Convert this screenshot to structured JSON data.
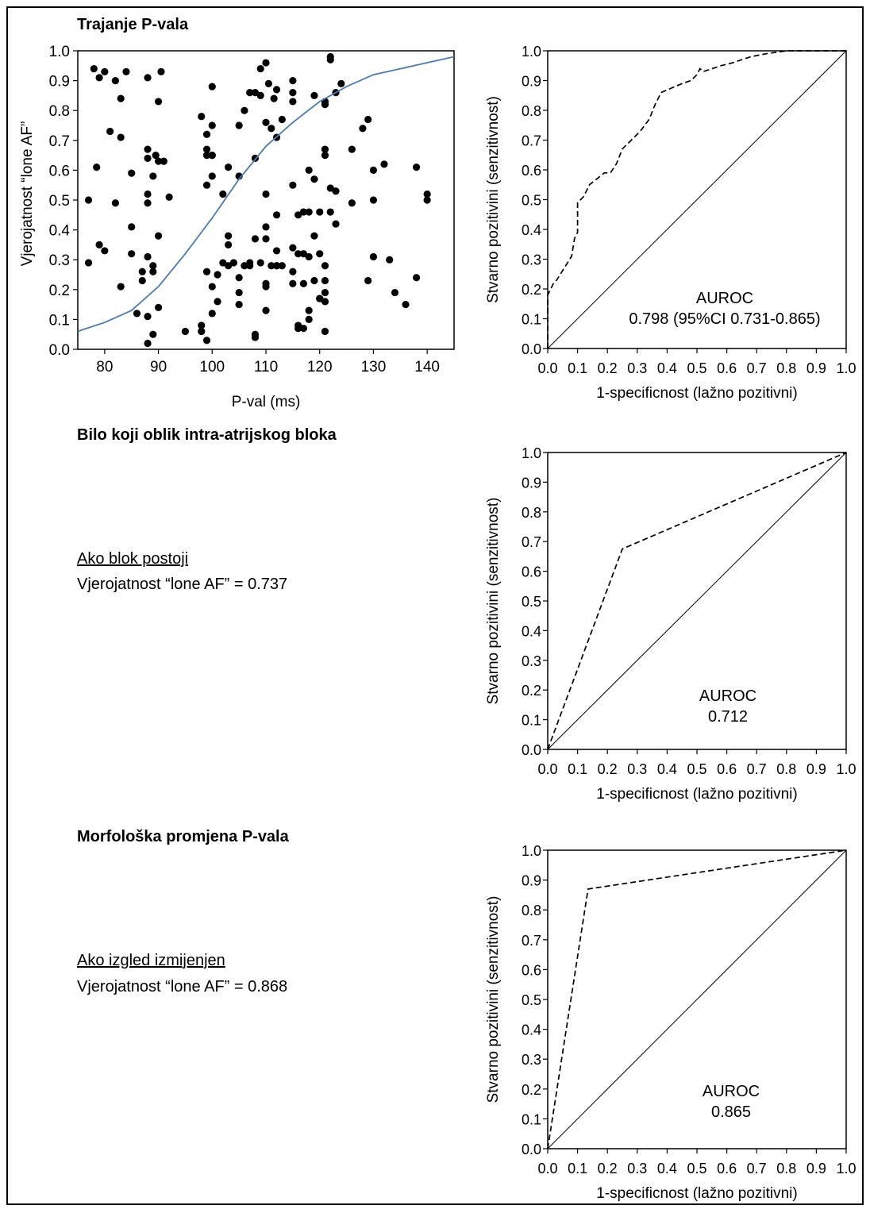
{
  "sections": {
    "s1_title": "Trajanje P-vala",
    "s2_title": "Bilo koji oblik intra-atrijskog bloka",
    "s3_title": "Morfološka promjena P-vala",
    "s2_note_head": "Ako blok postoji",
    "s2_note_text": "Vjerojatnost “lone AF” = 0.737",
    "s3_note_head": "Ako izgled izmijenjen",
    "s3_note_text": "Vjerojatnost “lone AF” = 0.868"
  },
  "colors": {
    "logistic_curve": "#4a7ab5",
    "points": "#000000",
    "roc_curve": "#000000"
  },
  "chart_data": [
    {
      "id": "scatter",
      "type": "scatter",
      "xlabel": "P-val (ms)",
      "ylabel": "Vjerojatnost “lone AF”",
      "xlim": [
        75,
        145
      ],
      "ylim": [
        0,
        1.0
      ],
      "xticks": [
        80,
        90,
        100,
        110,
        120,
        130,
        140
      ],
      "yticks": [
        0.0,
        0.1,
        0.2,
        0.3,
        0.4,
        0.5,
        0.6,
        0.7,
        0.8,
        0.9,
        1.0
      ],
      "ytick_labels": [
        "0.0",
        "0.1",
        "0.2",
        "0.3",
        "0.4",
        "0.5",
        "0.6",
        "0.7",
        "0.8",
        "0.9",
        "1.0"
      ],
      "points": [
        [
          77,
          0.5
        ],
        [
          77,
          0.29
        ],
        [
          78,
          0.94
        ],
        [
          78.5,
          0.61
        ],
        [
          79,
          0.91
        ],
        [
          79,
          0.35
        ],
        [
          80,
          0.93
        ],
        [
          80,
          0.33
        ],
        [
          81,
          0.73
        ],
        [
          82,
          0.9
        ],
        [
          82,
          0.49
        ],
        [
          83,
          0.84
        ],
        [
          83,
          0.71
        ],
        [
          84,
          0.93
        ],
        [
          83,
          0.21
        ],
        [
          85,
          0.59
        ],
        [
          85,
          0.41
        ],
        [
          85,
          0.32
        ],
        [
          86,
          0.12
        ],
        [
          87,
          0.26
        ],
        [
          87,
          0.23
        ],
        [
          88,
          0.91
        ],
        [
          88,
          0.67
        ],
        [
          88,
          0.64
        ],
        [
          88,
          0.52
        ],
        [
          88,
          0.49
        ],
        [
          88,
          0.31
        ],
        [
          88,
          0.11
        ],
        [
          88,
          0.02
        ],
        [
          89,
          0.58
        ],
        [
          89,
          0.28
        ],
        [
          89,
          0.26
        ],
        [
          89,
          0.05
        ],
        [
          89.5,
          0.65
        ],
        [
          90,
          0.83
        ],
        [
          90,
          0.63
        ],
        [
          90,
          0.38
        ],
        [
          90,
          0.14
        ],
        [
          90.5,
          0.93
        ],
        [
          91,
          0.63
        ],
        [
          92,
          0.51
        ],
        [
          95,
          0.06
        ],
        [
          98,
          0.78
        ],
        [
          98,
          0.08
        ],
        [
          98,
          0.06
        ],
        [
          99,
          0.72
        ],
        [
          99,
          0.67
        ],
        [
          99,
          0.65
        ],
        [
          99,
          0.55
        ],
        [
          99,
          0.26
        ],
        [
          99,
          0.03
        ],
        [
          100,
          0.88
        ],
        [
          100,
          0.75
        ],
        [
          100,
          0.65
        ],
        [
          100,
          0.65
        ],
        [
          100,
          0.58
        ],
        [
          100,
          0.21
        ],
        [
          100,
          0.12
        ],
        [
          101,
          0.25
        ],
        [
          101,
          0.16
        ],
        [
          102,
          0.52
        ],
        [
          102,
          0.29
        ],
        [
          103,
          0.61
        ],
        [
          103,
          0.38
        ],
        [
          103,
          0.35
        ],
        [
          103,
          0.28
        ],
        [
          104,
          0.29
        ],
        [
          105,
          0.75
        ],
        [
          105,
          0.58
        ],
        [
          105,
          0.24
        ],
        [
          105,
          0.19
        ],
        [
          105,
          0.15
        ],
        [
          106,
          0.8
        ],
        [
          106,
          0.28
        ],
        [
          107,
          0.86
        ],
        [
          107,
          0.28
        ],
        [
          107,
          0.29
        ],
        [
          108,
          0.86
        ],
        [
          108,
          0.64
        ],
        [
          108,
          0.37
        ],
        [
          108,
          0.05
        ],
        [
          108,
          0.04
        ],
        [
          109,
          0.94
        ],
        [
          109,
          0.85
        ],
        [
          109,
          0.29
        ],
        [
          110,
          0.96
        ],
        [
          110,
          0.76
        ],
        [
          110,
          0.52
        ],
        [
          110,
          0.41
        ],
        [
          110,
          0.37
        ],
        [
          110,
          0.22
        ],
        [
          110,
          0.21
        ],
        [
          110,
          0.13
        ],
        [
          110.5,
          0.89
        ],
        [
          111,
          0.74
        ],
        [
          111,
          0.28
        ],
        [
          111.5,
          0.84
        ],
        [
          112,
          0.87
        ],
        [
          112,
          0.71
        ],
        [
          112,
          0.45
        ],
        [
          112,
          0.33
        ],
        [
          112,
          0.28
        ],
        [
          112,
          0.28
        ],
        [
          113,
          0.77
        ],
        [
          113,
          0.28
        ],
        [
          115,
          0.9
        ],
        [
          115,
          0.86
        ],
        [
          115,
          0.83
        ],
        [
          115,
          0.55
        ],
        [
          115,
          0.34
        ],
        [
          115,
          0.26
        ],
        [
          115,
          0.22
        ],
        [
          116,
          0.32
        ],
        [
          116,
          0.45
        ],
        [
          116,
          0.08
        ],
        [
          116,
          0.07
        ],
        [
          117,
          0.46
        ],
        [
          117,
          0.32
        ],
        [
          117,
          0.22
        ],
        [
          117,
          0.07
        ],
        [
          118,
          0.6
        ],
        [
          118,
          0.46
        ],
        [
          118,
          0.31
        ],
        [
          118,
          0.13
        ],
        [
          118,
          0.1
        ],
        [
          119,
          0.85
        ],
        [
          119,
          0.57
        ],
        [
          119,
          0.38
        ],
        [
          119,
          0.23
        ],
        [
          120,
          0.46
        ],
        [
          120,
          0.32
        ],
        [
          120,
          0.17
        ],
        [
          120,
          0.17
        ],
        [
          121,
          0.83
        ],
        [
          121,
          0.82
        ],
        [
          121,
          0.67
        ],
        [
          121,
          0.65
        ],
        [
          121,
          0.28
        ],
        [
          121,
          0.23
        ],
        [
          121,
          0.19
        ],
        [
          121,
          0.16
        ],
        [
          121,
          0.06
        ],
        [
          122,
          0.98
        ],
        [
          122,
          0.97
        ],
        [
          122,
          0.54
        ],
        [
          122,
          0.46
        ],
        [
          123,
          0.86
        ],
        [
          123,
          0.53
        ],
        [
          123,
          0.42
        ],
        [
          124,
          0.89
        ],
        [
          126,
          0.67
        ],
        [
          126,
          0.49
        ],
        [
          128,
          0.74
        ],
        [
          129,
          0.23
        ],
        [
          129,
          0.77
        ],
        [
          130,
          0.6
        ],
        [
          130,
          0.5
        ],
        [
          130,
          0.31
        ],
        [
          132,
          0.62
        ],
        [
          133,
          0.3
        ],
        [
          134,
          0.19
        ],
        [
          136,
          0.15
        ],
        [
          138,
          0.61
        ],
        [
          138,
          0.24
        ],
        [
          140,
          0.52
        ],
        [
          140,
          0.5
        ]
      ],
      "curve": [
        [
          75,
          0.06
        ],
        [
          80,
          0.09
        ],
        [
          85,
          0.13
        ],
        [
          90,
          0.21
        ],
        [
          95,
          0.32
        ],
        [
          100,
          0.44
        ],
        [
          105,
          0.57
        ],
        [
          110,
          0.68
        ],
        [
          115,
          0.76
        ],
        [
          120,
          0.83
        ],
        [
          125,
          0.88
        ],
        [
          130,
          0.92
        ],
        [
          135,
          0.94
        ],
        [
          140,
          0.96
        ],
        [
          145,
          0.98
        ]
      ]
    },
    {
      "id": "roc1",
      "type": "line",
      "xlabel": "1-specificnost (lažno pozitivni)",
      "ylabel": "Stvarno pozitivini (senzitivnost)",
      "xlim": [
        0,
        1
      ],
      "ylim": [
        0,
        1
      ],
      "ticks": [
        "0.0",
        "0.1",
        "0.2",
        "0.3",
        "0.4",
        "0.5",
        "0.6",
        "0.7",
        "0.8",
        "0.9",
        "1.0"
      ],
      "annotation_title": "AUROC",
      "annotation_value": "0.798 (95%CI 0.731-0.865)",
      "series": [
        {
          "values": [
            [
              0.0,
              0.0
            ],
            [
              0.0,
              0.18
            ],
            [
              0.02,
              0.22
            ],
            [
              0.03,
              0.23
            ],
            [
              0.08,
              0.31
            ],
            [
              0.09,
              0.37
            ],
            [
              0.1,
              0.39
            ],
            [
              0.1,
              0.49
            ],
            [
              0.12,
              0.51
            ],
            [
              0.14,
              0.55
            ],
            [
              0.19,
              0.59
            ],
            [
              0.21,
              0.59
            ],
            [
              0.23,
              0.62
            ],
            [
              0.25,
              0.67
            ],
            [
              0.28,
              0.7
            ],
            [
              0.31,
              0.73
            ],
            [
              0.34,
              0.77
            ],
            [
              0.36,
              0.82
            ],
            [
              0.38,
              0.86
            ],
            [
              0.45,
              0.89
            ],
            [
              0.48,
              0.9
            ],
            [
              0.5,
              0.92
            ],
            [
              0.51,
              0.94
            ],
            [
              0.52,
              0.93
            ],
            [
              0.58,
              0.95
            ],
            [
              0.62,
              0.96
            ],
            [
              0.68,
              0.98
            ],
            [
              0.73,
              0.99
            ],
            [
              0.8,
              1.0
            ],
            [
              1.0,
              1.0
            ]
          ]
        }
      ],
      "reference_line": [
        [
          0,
          0
        ],
        [
          1,
          1
        ]
      ]
    },
    {
      "id": "roc2",
      "type": "line",
      "xlabel": "1-specificnost (lažno pozitivni)",
      "ylabel": "Stvarno pozitivini (senzitivnost)",
      "xlim": [
        0,
        1
      ],
      "ylim": [
        0,
        1
      ],
      "ticks": [
        "0.0",
        "0.1",
        "0.2",
        "0.3",
        "0.4",
        "0.5",
        "0.6",
        "0.7",
        "0.8",
        "0.9",
        "1.0"
      ],
      "annotation_title": "AUROC",
      "annotation_value": "0.712",
      "series": [
        {
          "values": [
            [
              0.0,
              0.0
            ],
            [
              0.25,
              0.675
            ],
            [
              1.0,
              1.0
            ]
          ]
        }
      ],
      "reference_line": [
        [
          0,
          0
        ],
        [
          1,
          1
        ]
      ]
    },
    {
      "id": "roc3",
      "type": "line",
      "xlabel": "1-specificnost (lažno pozitivni)",
      "ylabel": "Stvarno pozitivini (senzitivnost)",
      "xlim": [
        0,
        1
      ],
      "ylim": [
        0,
        1
      ],
      "ticks": [
        "0.0",
        "0.1",
        "0.2",
        "0.3",
        "0.4",
        "0.5",
        "0.6",
        "0.7",
        "0.8",
        "0.9",
        "1.0"
      ],
      "annotation_title": "AUROC",
      "annotation_value": "0.865",
      "series": [
        {
          "values": [
            [
              0.0,
              0.0
            ],
            [
              0.135,
              0.87
            ],
            [
              1.0,
              1.0
            ]
          ]
        }
      ],
      "reference_line": [
        [
          0,
          0
        ],
        [
          1,
          1
        ]
      ]
    }
  ]
}
